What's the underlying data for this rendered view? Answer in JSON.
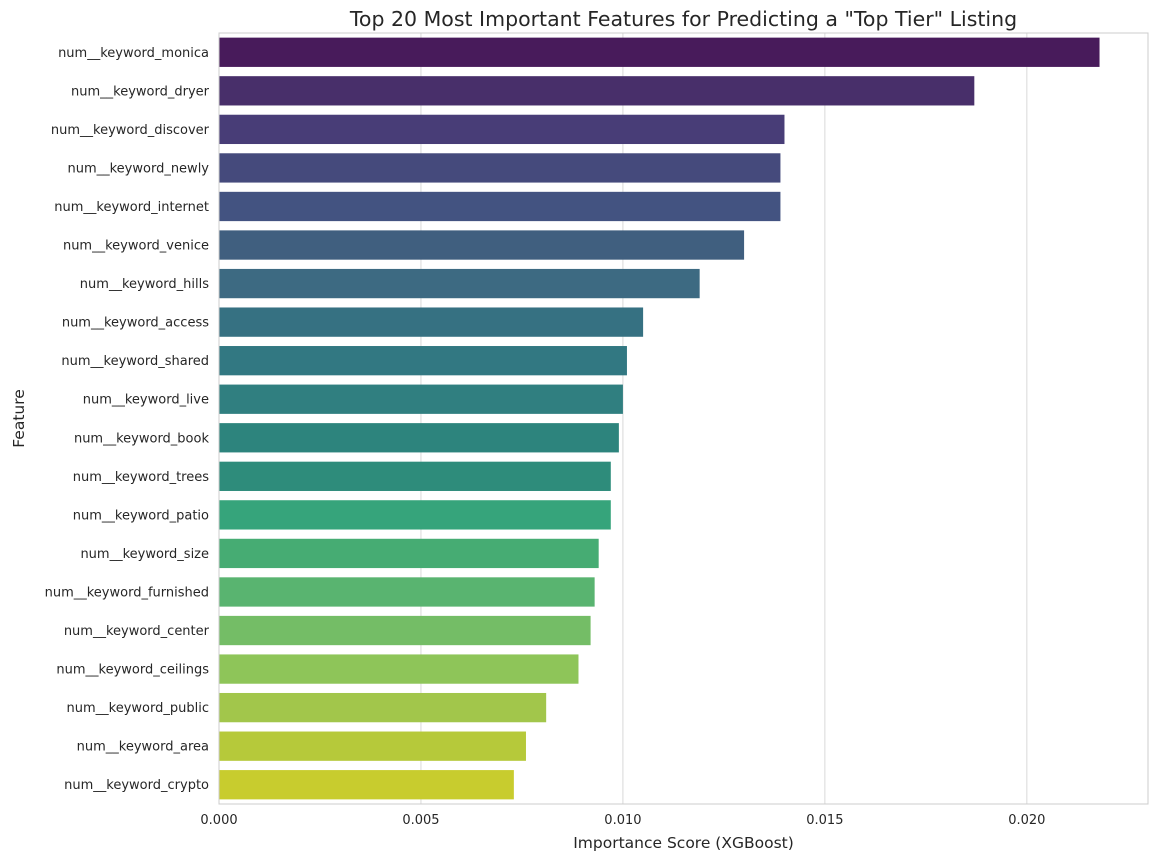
{
  "chart_data": {
    "type": "bar",
    "orientation": "horizontal",
    "title": "Top 20 Most Important Features for Predicting a \"Top Tier\" Listing",
    "xlabel": "Importance Score (XGBoost)",
    "ylabel": "Feature",
    "xlim": [
      0,
      0.023
    ],
    "xticks": [
      0.0,
      0.005,
      0.01,
      0.015,
      0.02
    ],
    "xtick_labels": [
      "0.000",
      "0.005",
      "0.010",
      "0.015",
      "0.020"
    ],
    "grid": "vertical",
    "palette": "viridis",
    "categories": [
      "num__keyword_monica",
      "num__keyword_dryer",
      "num__keyword_discover",
      "num__keyword_newly",
      "num__keyword_internet",
      "num__keyword_venice",
      "num__keyword_hills",
      "num__keyword_access",
      "num__keyword_shared",
      "num__keyword_live",
      "num__keyword_book",
      "num__keyword_trees",
      "num__keyword_patio",
      "num__keyword_size",
      "num__keyword_furnished",
      "num__keyword_center",
      "num__keyword_ceilings",
      "num__keyword_public",
      "num__keyword_area",
      "num__keyword_crypto"
    ],
    "values": [
      0.0218,
      0.0187,
      0.014,
      0.0139,
      0.0139,
      0.013,
      0.0119,
      0.0105,
      0.0101,
      0.01,
      0.0099,
      0.0097,
      0.0097,
      0.0094,
      0.0093,
      0.0092,
      0.0089,
      0.0081,
      0.0076,
      0.0073
    ],
    "colors": [
      "#481b5b",
      "#482f6a",
      "#483d77",
      "#454a7c",
      "#435381",
      "#405f7f",
      "#3d6a82",
      "#367182",
      "#327882",
      "#307f80",
      "#2d847d",
      "#2e8c7b",
      "#36a47b",
      "#46ac73",
      "#59b470",
      "#74bd66",
      "#8ec559",
      "#a2c64b",
      "#b6c93a",
      "#c8cc2e"
    ]
  }
}
